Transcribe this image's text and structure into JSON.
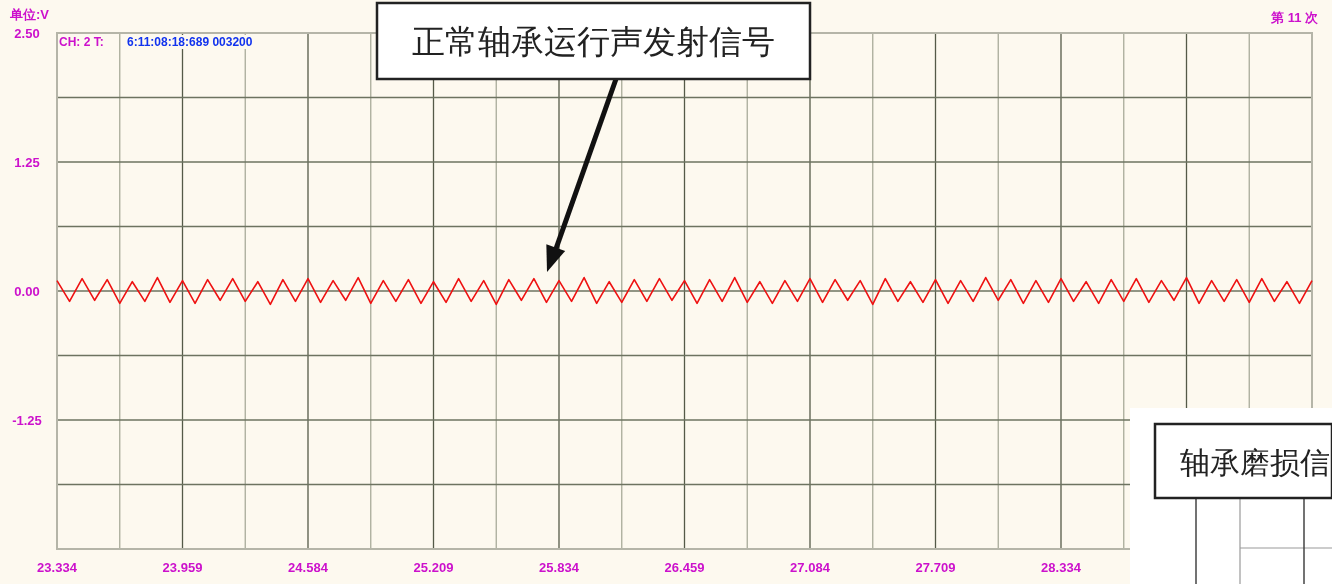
{
  "chart_data": {
    "type": "line",
    "ylabel": "单位:V",
    "annotations": [
      "CH:  2 T:",
      "6:11:08:18:689 003200",
      "第 11 次",
      "正常轴承运行声发射信号",
      "轴承磨损信"
    ],
    "x": [
      23.334,
      23.3965,
      23.459,
      23.5215,
      23.584,
      23.6465,
      23.709,
      23.7715,
      23.834,
      23.8965,
      23.959,
      24.0215,
      24.084,
      24.1465,
      24.209,
      24.2715,
      24.334,
      24.3965,
      24.459,
      24.5215,
      24.584,
      24.6465,
      24.709,
      24.7715,
      24.834,
      24.8965,
      24.959,
      25.0215,
      25.084,
      25.1465,
      25.209,
      25.2715,
      25.334,
      25.3965,
      25.459,
      25.5215,
      25.584,
      25.6465,
      25.709,
      25.7715,
      25.834,
      25.8965,
      25.959,
      26.0215,
      26.084,
      26.1465,
      26.209,
      26.2715,
      26.334,
      26.3965,
      26.459,
      26.5215,
      26.584,
      26.6465,
      26.709,
      26.7715,
      26.834,
      26.8965,
      26.959,
      27.0215,
      27.084,
      27.1465,
      27.209,
      27.2715,
      27.334,
      27.3965,
      27.459,
      27.5215,
      27.584,
      27.6465,
      27.709,
      27.7715,
      27.834,
      27.8965,
      27.959,
      28.0215,
      28.084,
      28.1465,
      28.209,
      28.2715,
      28.334,
      28.3965,
      28.459,
      28.5215,
      28.584,
      28.6465,
      28.709,
      28.7715,
      28.834,
      28.8965,
      28.959,
      29.0215,
      29.084,
      29.1465,
      29.209,
      29.2715,
      29.334,
      29.3965,
      29.459,
      29.5215,
      29.584
    ],
    "series": [
      {
        "color": "#ee1111",
        "values": [
          0.1,
          -0.1,
          0.12,
          -0.09,
          0.11,
          -0.12,
          0.09,
          -0.1,
          0.13,
          -0.11,
          0.1,
          -0.12,
          0.11,
          -0.09,
          0.12,
          -0.1,
          0.09,
          -0.13,
          0.11,
          -0.1,
          0.12,
          -0.11,
          0.1,
          -0.09,
          0.13,
          -0.12,
          0.1,
          -0.1,
          0.11,
          -0.12,
          0.09,
          -0.11,
          0.12,
          -0.1,
          0.1,
          -0.13,
          0.11,
          -0.09,
          0.12,
          -0.11,
          0.1,
          -0.1,
          0.13,
          -0.12,
          0.09,
          -0.11,
          0.11,
          -0.1,
          0.12,
          -0.09,
          0.1,
          -0.12,
          0.11,
          -0.1,
          0.13,
          -0.11,
          0.09,
          -0.12,
          0.1,
          -0.1,
          0.12,
          -0.11,
          0.11,
          -0.09,
          0.1,
          -0.13,
          0.12,
          -0.1,
          0.09,
          -0.11,
          0.11,
          -0.12,
          0.1,
          -0.1,
          0.13,
          -0.09,
          0.11,
          -0.12,
          0.1,
          -0.11,
          0.12,
          -0.1,
          0.09,
          -0.12,
          0.11,
          -0.1,
          0.12,
          -0.11,
          0.1,
          -0.09,
          0.13,
          -0.12,
          0.1,
          -0.1,
          0.11,
          -0.11,
          0.12,
          -0.1,
          0.09,
          -0.12,
          0.1
        ]
      }
    ],
    "xlim": [
      23.334,
      29.584
    ],
    "ylim": [
      -2.5,
      2.5
    ],
    "xticks": [
      23.334,
      {
        "value": 23.6465,
        "label": null
      },
      23.959,
      {
        "value": 24.2715,
        "label": null
      },
      24.584,
      {
        "value": 24.8965,
        "label": null
      },
      25.209,
      {
        "value": 25.5215,
        "label": null
      },
      25.834,
      {
        "value": 26.1465,
        "label": null
      },
      26.459,
      {
        "value": 26.7715,
        "label": null
      },
      27.084,
      {
        "value": 27.3965,
        "label": null
      },
      27.709,
      {
        "value": 28.0215,
        "label": null
      },
      28.334,
      {
        "value": 28.6465,
        "label": null
      },
      {
        "value": 28.959,
        "label": null
      },
      {
        "value": 29.2715,
        "label": null
      },
      {
        "value": 29.584,
        "label": null
      }
    ],
    "yticks": [
      {
        "value": 2.5,
        "label": "2.50"
      },
      {
        "value": 1.875,
        "label": null
      },
      1.25,
      {
        "value": 0.625,
        "label": null
      },
      {
        "value": 0,
        "label": "0.00"
      },
      {
        "value": -0.625,
        "label": null
      },
      -1.25,
      {
        "value": -1.875,
        "label": null
      },
      {
        "value": -2.5,
        "label": null
      }
    ],
    "grid": true,
    "marker": "none",
    "line_style": "solid"
  }
}
